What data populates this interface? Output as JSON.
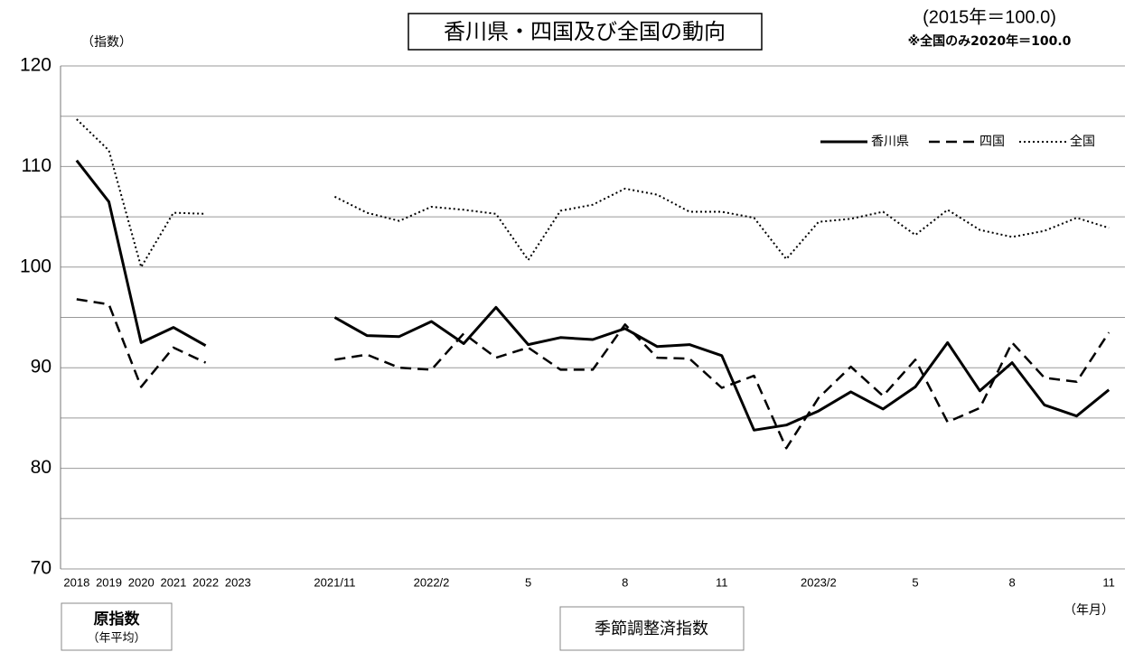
{
  "chart_data": {
    "type": "line",
    "title": "香川県・四国及び全国の動向",
    "subtitle": "(2015年＝100.0)",
    "note": "※全国のみ2020年＝100.0",
    "y_label": "（指数）",
    "x_label": "（年月）",
    "annual_label": "原指数",
    "annual_sublabel": "（年平均）",
    "seasonal_label": "季節調整済指数",
    "categories": [
      "2018",
      "2019",
      "2020",
      "2021",
      "2022",
      "2023",
      null,
      null,
      "2021/11",
      null,
      null,
      "2022/2",
      null,
      null,
      "5",
      null,
      null,
      "8",
      null,
      null,
      "11",
      null,
      null,
      "2023/2",
      null,
      null,
      "5",
      null,
      null,
      "8",
      null,
      null,
      "11"
    ],
    "ylim": [
      70,
      120
    ],
    "yticks": [
      70,
      80,
      90,
      100,
      110,
      120
    ],
    "minor_gridlines": [
      75,
      85,
      95,
      105,
      115
    ],
    "grid": true,
    "legend": "top-right",
    "series": [
      {
        "name": "香川県",
        "color": "#000000",
        "style": "solid",
        "values": [
          110.6,
          106.5,
          92.5,
          94.0,
          92.2,
          null,
          null,
          null,
          95.0,
          93.2,
          93.1,
          94.6,
          92.4,
          96.0,
          92.3,
          93.0,
          92.8,
          93.9,
          92.1,
          92.3,
          91.2,
          83.8,
          84.3,
          85.7,
          87.6,
          85.9,
          88.1,
          92.5,
          87.7,
          90.5,
          86.3,
          85.2,
          87.8
        ]
      },
      {
        "name": "四国",
        "color": "#000000",
        "style": "dashed",
        "values": [
          96.8,
          96.3,
          88.1,
          92.0,
          90.5,
          null,
          null,
          null,
          90.8,
          91.3,
          90.0,
          89.8,
          93.4,
          91.0,
          92.0,
          89.8,
          89.8,
          94.3,
          91.0,
          90.9,
          88.0,
          89.2,
          82.0,
          87.0,
          90.1,
          87.2,
          90.8,
          84.6,
          86.0,
          92.5,
          89.0,
          88.6,
          93.5
        ]
      },
      {
        "name": "全国",
        "color": "#000000",
        "style": "dotted",
        "values": [
          114.7,
          111.6,
          100.0,
          105.4,
          105.3,
          null,
          null,
          null,
          107.0,
          105.4,
          104.6,
          106.0,
          105.7,
          105.3,
          100.7,
          105.6,
          106.2,
          107.8,
          107.2,
          105.5,
          105.5,
          104.9,
          100.8,
          104.5,
          104.8,
          105.5,
          103.2,
          105.7,
          103.7,
          103.0,
          103.6,
          104.9,
          103.9
        ]
      }
    ]
  }
}
